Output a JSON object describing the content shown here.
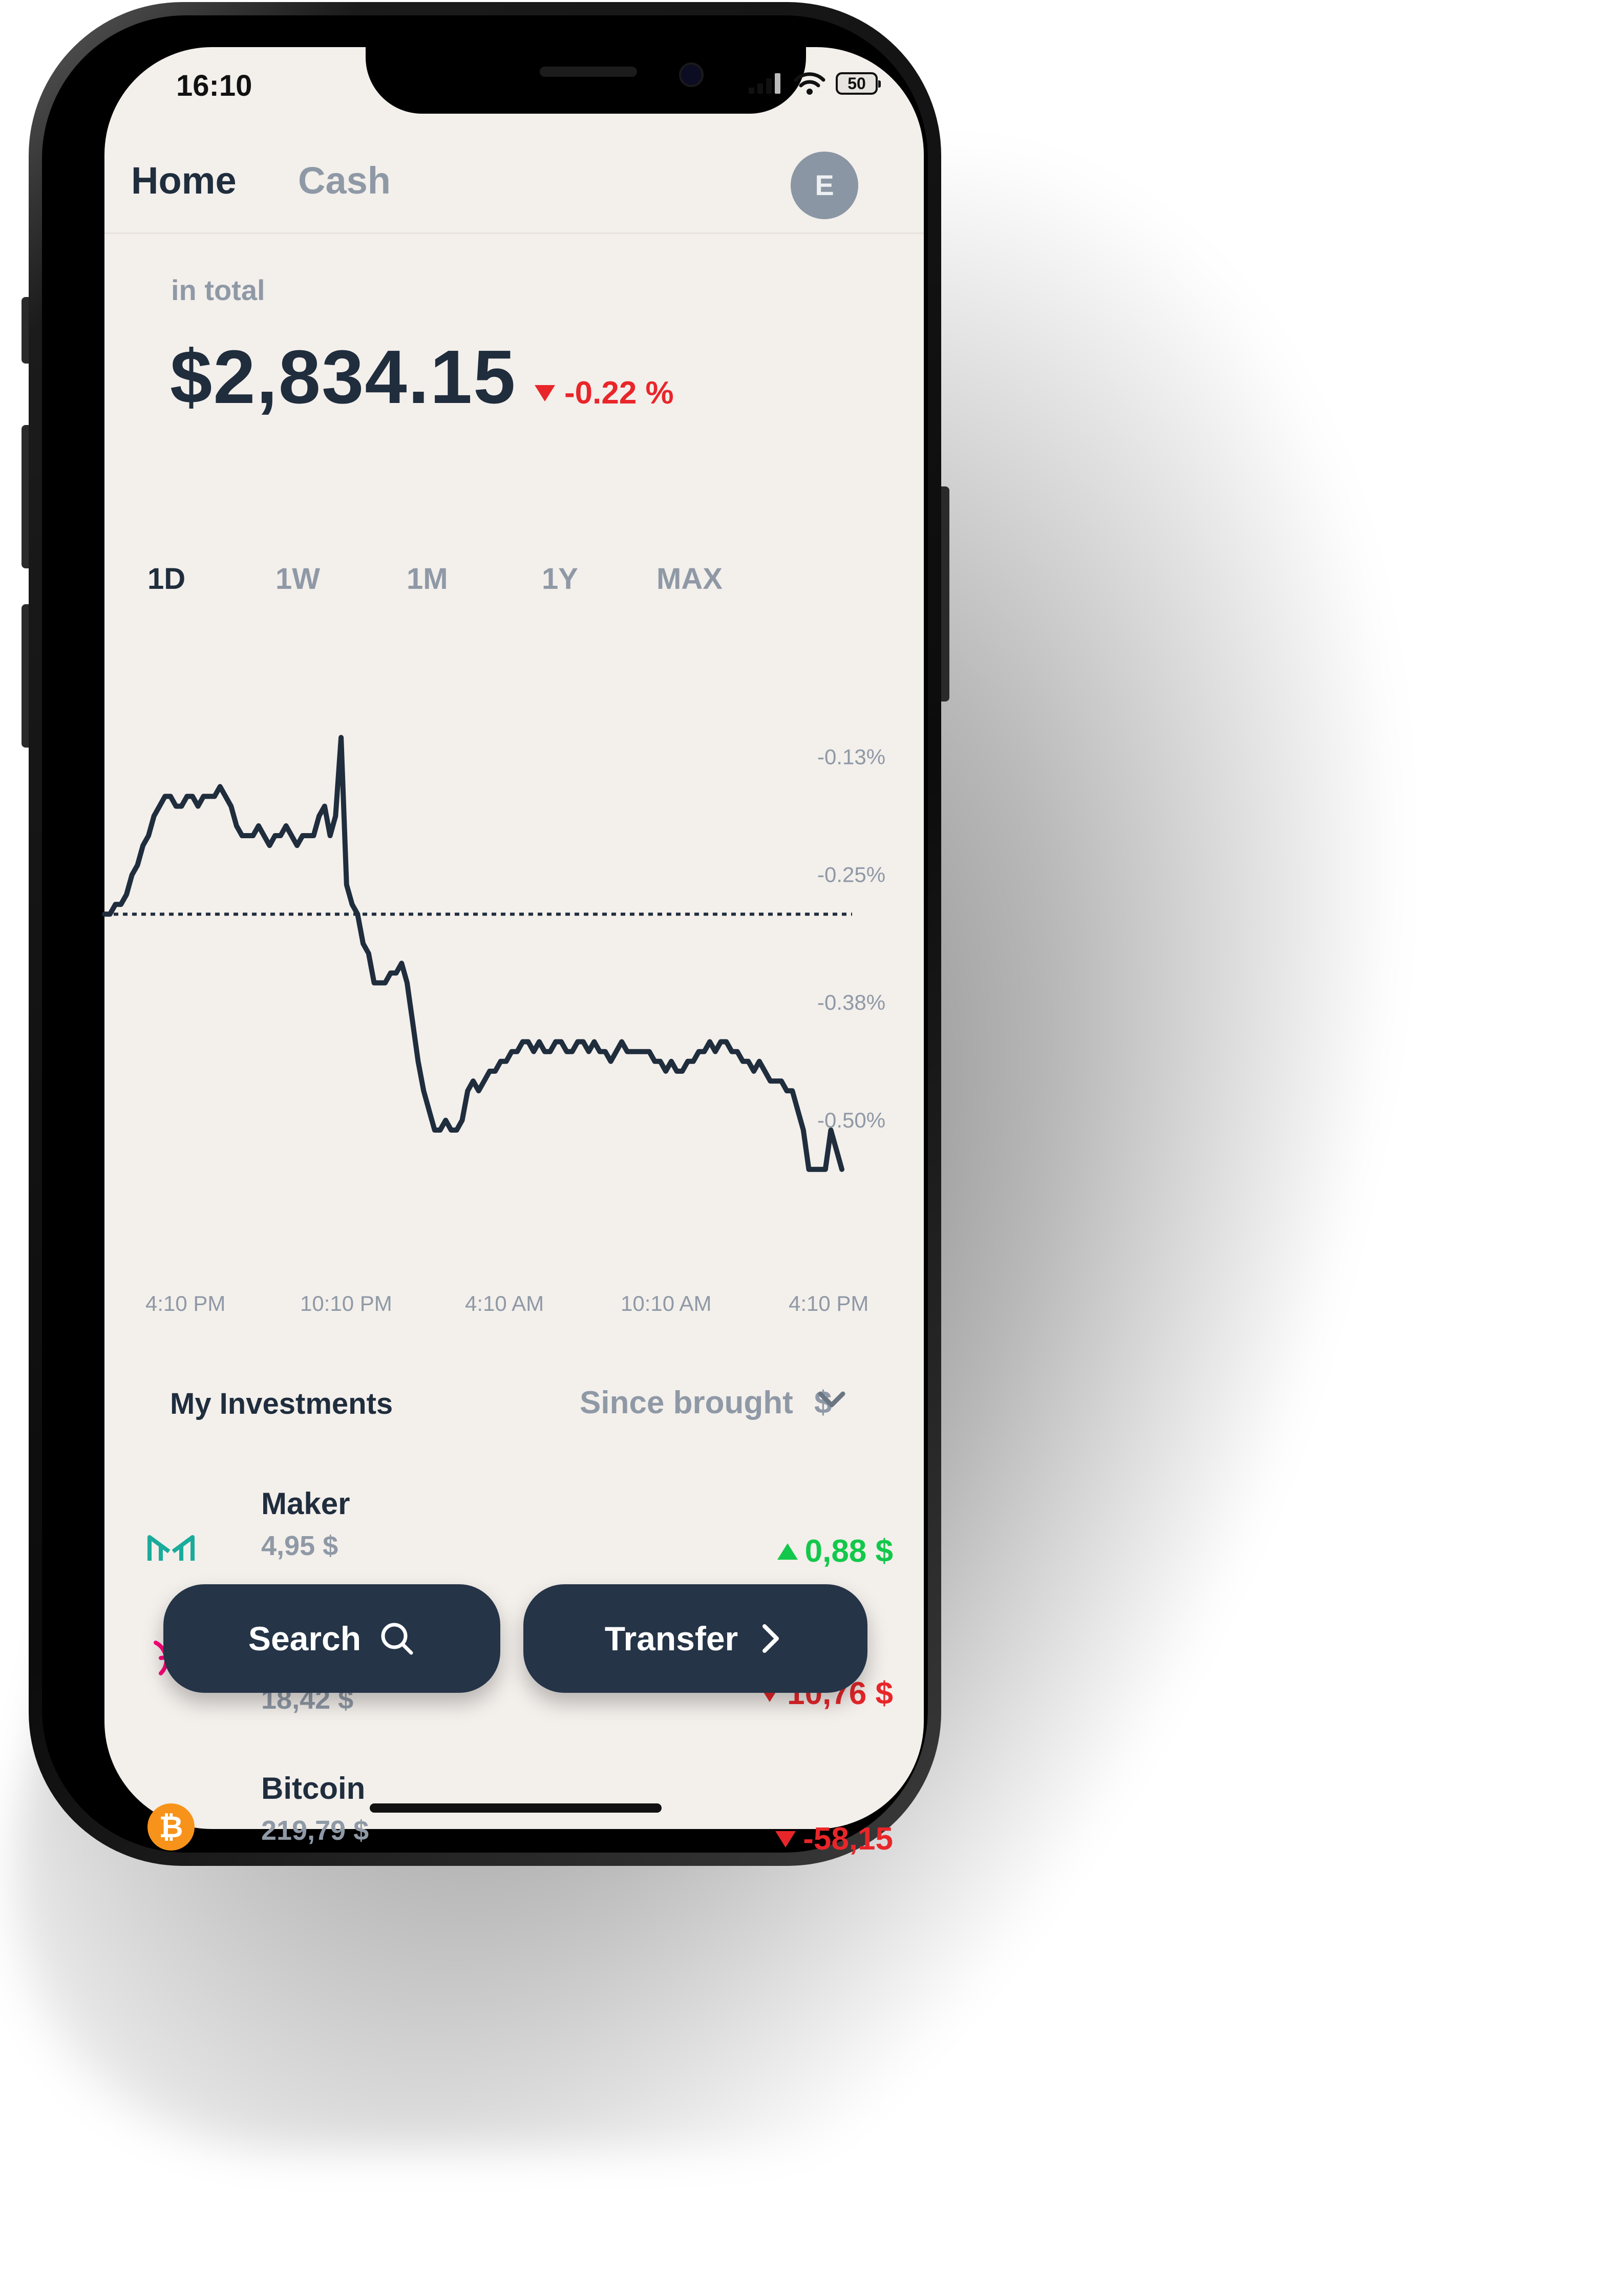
{
  "status_bar": {
    "time": "16:10",
    "battery": "50"
  },
  "header": {
    "tabs": [
      {
        "label": "Home",
        "active": true
      },
      {
        "label": "Cash",
        "active": false
      }
    ],
    "avatar_initial": "E"
  },
  "portfolio": {
    "total_label": "in total",
    "total_value": "$2,834.15",
    "change_pct": "-0.22 %",
    "change_direction": "down"
  },
  "ranges": [
    {
      "label": "1D",
      "active": true
    },
    {
      "label": "1W",
      "active": false
    },
    {
      "label": "1M",
      "active": false
    },
    {
      "label": "1Y",
      "active": false
    },
    {
      "label": "MAX",
      "active": false
    }
  ],
  "chart_data": {
    "type": "line",
    "y_axis_labels": [
      "-0.13%",
      "-0.25%",
      "-0.38%",
      "-0.50%"
    ],
    "y_ticks": [
      -0.13,
      -0.25,
      -0.38,
      -0.5
    ],
    "ylim": [
      -0.57,
      -0.09
    ],
    "x_axis_labels": [
      "4:10 PM",
      "10:10 PM",
      "4:10 AM",
      "10:10 AM",
      "4:10 PM"
    ],
    "baseline": -0.29,
    "series": [
      {
        "values": [
          -0.29,
          -0.29,
          -0.28,
          -0.28,
          -0.27,
          -0.25,
          -0.24,
          -0.22,
          -0.21,
          -0.19,
          -0.18,
          -0.17,
          -0.17,
          -0.18,
          -0.18,
          -0.17,
          -0.17,
          -0.18,
          -0.17,
          -0.17,
          -0.17,
          -0.16,
          -0.17,
          -0.18,
          -0.2,
          -0.21,
          -0.21,
          -0.21,
          -0.2,
          -0.21,
          -0.22,
          -0.21,
          -0.21,
          -0.2,
          -0.21,
          -0.22,
          -0.21,
          -0.21,
          -0.21,
          -0.19,
          -0.18,
          -0.21,
          -0.19,
          -0.11,
          -0.26,
          -0.28,
          -0.29,
          -0.32,
          -0.33,
          -0.36,
          -0.36,
          -0.36,
          -0.35,
          -0.35,
          -0.34,
          -0.36,
          -0.4,
          -0.44,
          -0.47,
          -0.49,
          -0.51,
          -0.51,
          -0.5,
          -0.51,
          -0.51,
          -0.5,
          -0.47,
          -0.46,
          -0.47,
          -0.46,
          -0.45,
          -0.45,
          -0.44,
          -0.44,
          -0.43,
          -0.43,
          -0.42,
          -0.42,
          -0.43,
          -0.42,
          -0.43,
          -0.43,
          -0.42,
          -0.42,
          -0.43,
          -0.43,
          -0.42,
          -0.42,
          -0.43,
          -0.42,
          -0.43,
          -0.43,
          -0.44,
          -0.43,
          -0.42,
          -0.43,
          -0.43,
          -0.43,
          -0.43,
          -0.43,
          -0.44,
          -0.44,
          -0.45,
          -0.44,
          -0.45,
          -0.45,
          -0.44,
          -0.44,
          -0.43,
          -0.43,
          -0.42,
          -0.43,
          -0.42,
          -0.42,
          -0.43,
          -0.43,
          -0.44,
          -0.44,
          -0.45,
          -0.44,
          -0.45,
          -0.46,
          -0.46,
          -0.46,
          -0.47,
          -0.47,
          -0.49,
          -0.51,
          -0.55,
          -0.55,
          -0.55,
          -0.55,
          -0.51,
          -0.53,
          -0.55
        ]
      }
    ]
  },
  "investments": {
    "title": "My Investments",
    "filter_label": "Since brought",
    "filter_currency": "$",
    "items": [
      {
        "name": "Maker",
        "value": "4,95 $",
        "change": "0,88 $",
        "direction": "up",
        "icon": "maker-icon",
        "color": "#1aab9b"
      },
      {
        "name": "",
        "value": "18,42 $",
        "change": "10,76 $",
        "direction": "down",
        "icon": "uniswap-icon",
        "color": "#ff007a"
      },
      {
        "name": "Bitcoin",
        "value": "219,79 $",
        "change": "-58,15",
        "direction": "down",
        "icon": "bitcoin-icon",
        "color": "#f7931a"
      }
    ]
  },
  "actions": {
    "search_label": "Search",
    "transfer_label": "Transfer"
  },
  "colors": {
    "background": "#f3efeb",
    "primary_text": "#1f2d3d",
    "muted_text": "#8f99a6",
    "negative": "#e8262a",
    "positive": "#12c84a",
    "button": "#253447"
  }
}
